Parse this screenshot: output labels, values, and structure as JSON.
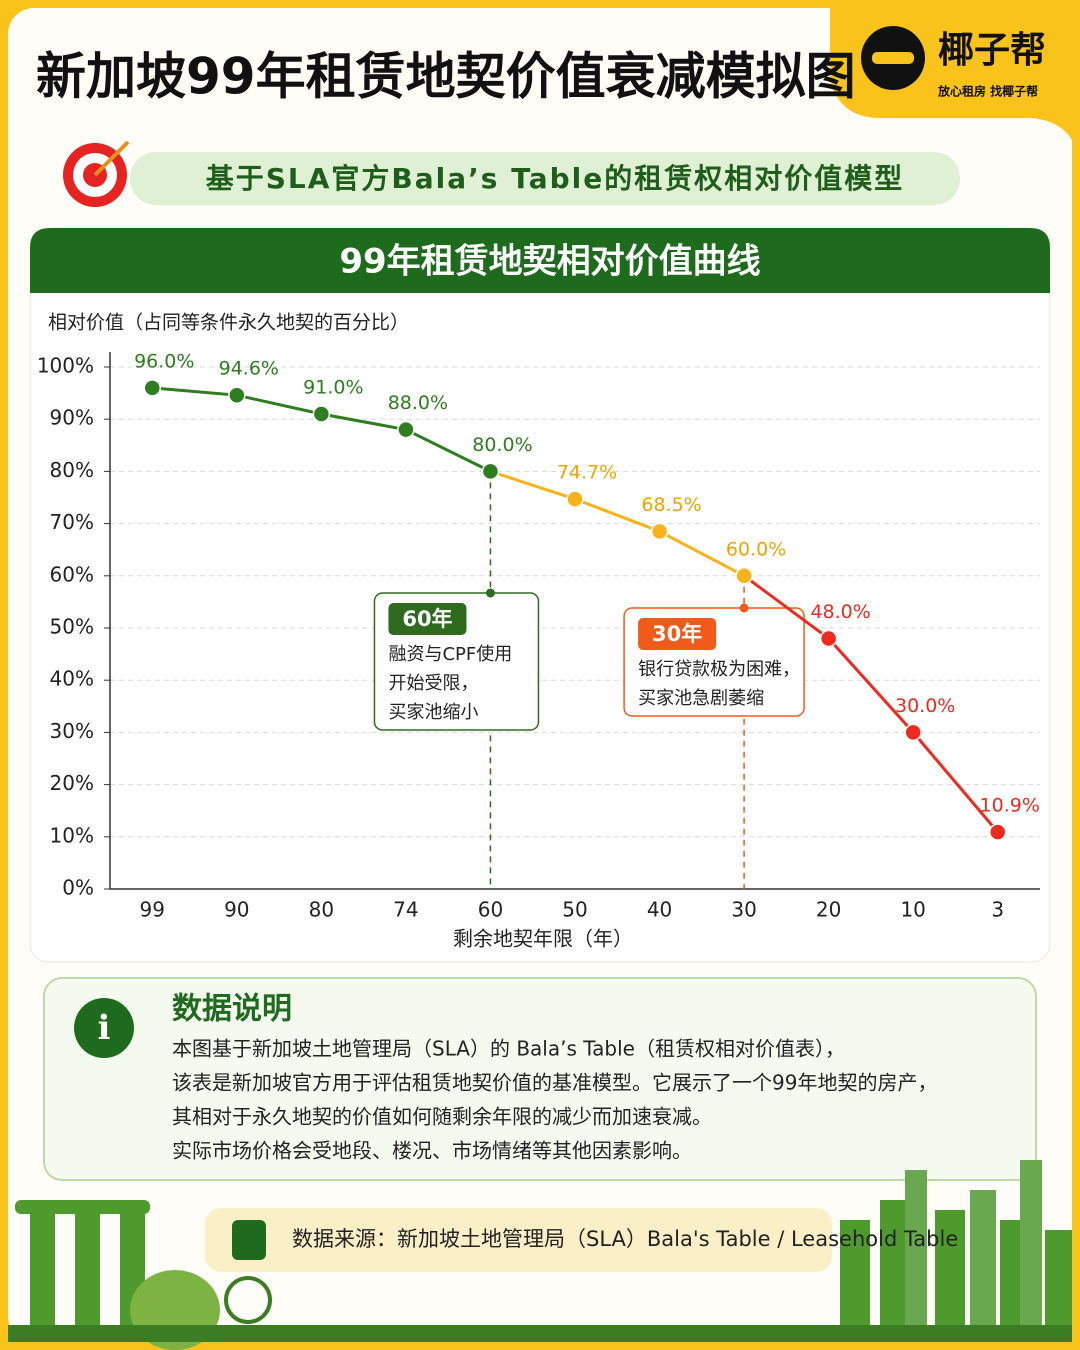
{
  "header": {
    "title": "新加坡99年租赁地契价值衰减模拟图",
    "brand": "椰子帮",
    "slogan": "放心租房  找椰子帮",
    "subtitle": "基于SLA官方Bala’s Table的租赁权相对价值模型"
  },
  "chart_data": {
    "type": "line",
    "title": "99年租赁地契相对价值曲线",
    "y_label": "相对价值（占同等条件永久地契的百分比）",
    "x_label": "剩余地契年限（年）",
    "categories": [
      "99",
      "90",
      "80",
      "74",
      "60",
      "50",
      "40",
      "30",
      "20",
      "10",
      "3"
    ],
    "values": [
      96,
      94.6,
      91,
      88,
      80,
      74.7,
      68.5,
      60,
      48,
      30,
      10.9
    ],
    "value_labels": [
      "96.0%",
      "94.6%",
      "91.0%",
      "88.0%",
      "80.0%",
      "74.7%",
      "68.5%",
      "60.0%",
      "48.0%",
      "30.0%",
      "10.9%"
    ],
    "colors": [
      "#2e7d1f",
      "#2e7d1f",
      "#2e7d1f",
      "#2e7d1f",
      "#2e7d1f",
      "#f9b21a",
      "#f9b21a",
      "#f9b21a",
      "#ee2a1f",
      "#ee2a1f",
      "#ee2a1f"
    ],
    "ylim": [
      0,
      100
    ],
    "yticks": [
      {
        "value": 0,
        "label": "0%"
      },
      {
        "value": 10,
        "label": "10%"
      },
      {
        "value": 20,
        "label": "20%"
      },
      {
        "value": 30,
        "label": "30%"
      },
      {
        "value": 40,
        "label": "40%"
      },
      {
        "value": 50,
        "label": "50%"
      },
      {
        "value": 60,
        "label": "60%"
      },
      {
        "value": 70,
        "label": "70%"
      },
      {
        "value": 80,
        "label": "80%"
      },
      {
        "value": 90,
        "label": "90%"
      },
      {
        "value": 100,
        "label": "100%"
      }
    ],
    "grid": true,
    "annotations": [
      {
        "category": "60",
        "tag": "60年",
        "lines": [
          "融资与CPF使用",
          "开始受限，",
          "买家池缩小"
        ],
        "color": "#2e6b1f"
      },
      {
        "category": "30",
        "tag": "30年",
        "lines": [
          "银行贷款极为困难，",
          "买家池急剧萎缩"
        ],
        "color": "#f05a1a"
      }
    ]
  },
  "info": {
    "title": "数据说明",
    "lines": [
      "本图基于新加坡土地管理局（SLA）的 Bala’s Table（租赁权相对价值表），",
      "该表是新加坡官方用于评估租赁地契价值的基准模型。它展示了一个99年地契的房产，",
      "其相对于永久地契的价值如何随剩余年限的减少而加速衰减。",
      "实际市场价格会受地段、楼况、市场情绪等其他因素影响。"
    ]
  },
  "source": "数据来源：新加坡土地管理局（SLA）Bala's Table / Leasehold Table"
}
